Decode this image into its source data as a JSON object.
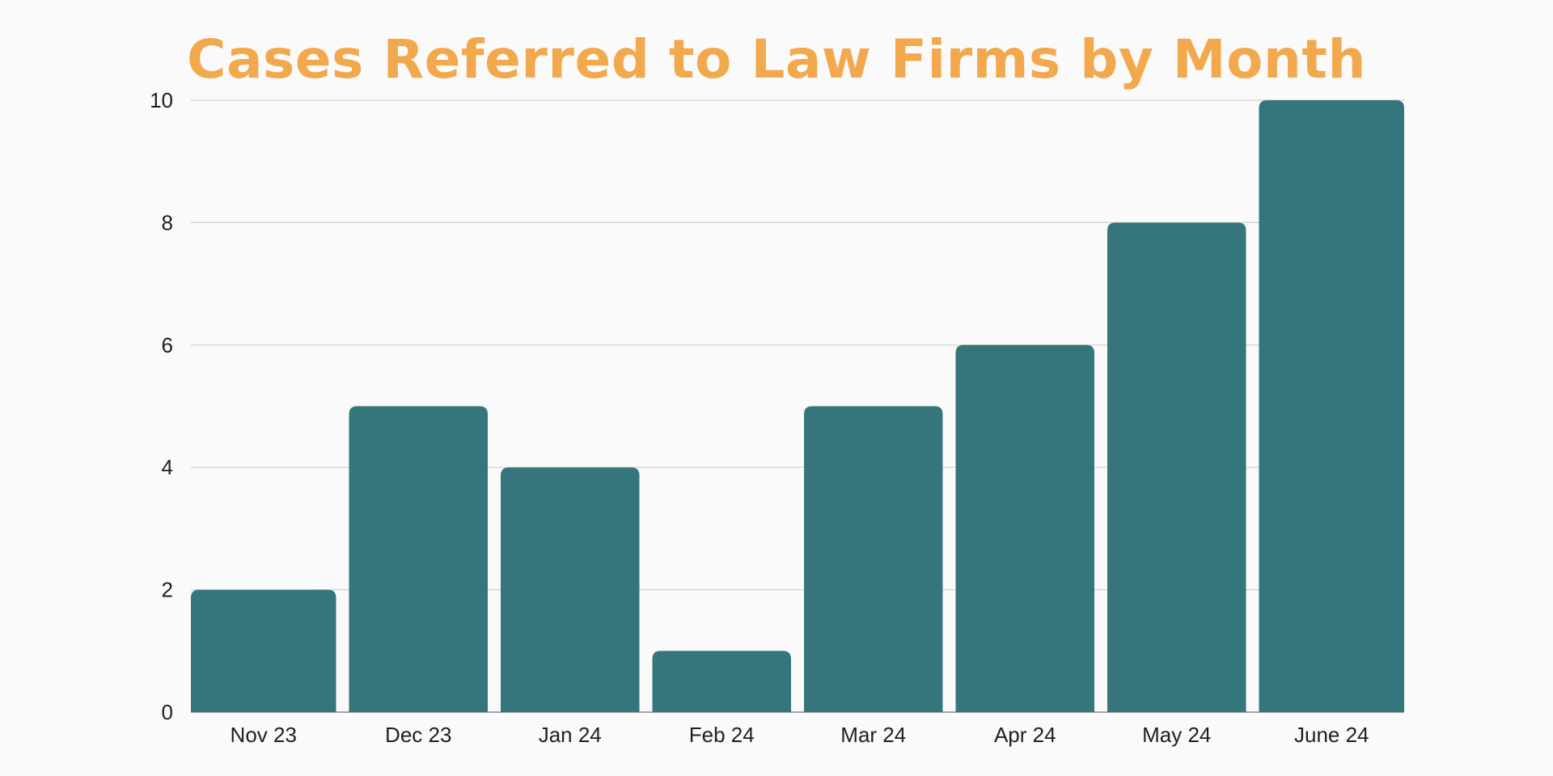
{
  "chart_data": {
    "type": "bar",
    "title": "Cases Referred to Law Firms by Month",
    "xlabel": "",
    "ylabel": "",
    "categories": [
      "Nov 23",
      "Dec 23",
      "Jan 24",
      "Feb 24",
      "Mar 24",
      "Apr 24",
      "May 24",
      "June 24"
    ],
    "values": [
      2,
      5,
      4,
      1,
      5,
      6,
      8,
      10
    ],
    "ylim": [
      0,
      10
    ],
    "yticks": [
      0,
      2,
      4,
      6,
      8,
      10
    ],
    "grid": true,
    "legend": "none"
  },
  "colors": {
    "title": "#f2a94e",
    "bar": "#34767c",
    "grid": "#cfcfcf",
    "axis": "#8a8a8a",
    "background": "#fbfafa"
  }
}
